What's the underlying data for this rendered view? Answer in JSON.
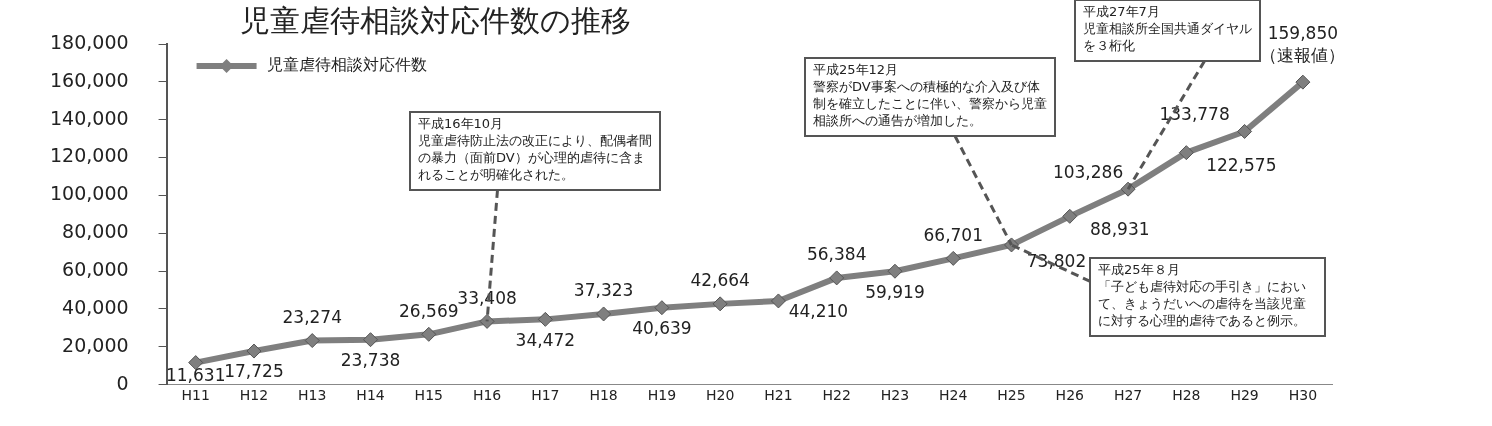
{
  "chart_data": {
    "type": "line",
    "title": "児童虐待相談対応件数の推移",
    "categories": [
      "H11",
      "H12",
      "H13",
      "H14",
      "H15",
      "H16",
      "H17",
      "H18",
      "H19",
      "H20",
      "H21",
      "H22",
      "H23",
      "H24",
      "H25",
      "H26",
      "H27",
      "H28",
      "H29",
      "H30"
    ],
    "series": [
      {
        "name": "児童虐待相談対応件数",
        "color": "#7f7f7f",
        "values": [
          11631,
          17725,
          23274,
          23738,
          26569,
          33408,
          34472,
          37323,
          40639,
          42664,
          44210,
          56384,
          59919,
          66701,
          73802,
          88931,
          103286,
          122575,
          133778,
          159850
        ],
        "value_labels": [
          "11,631",
          "17,725",
          "23,274",
          "23,738",
          "26,569",
          "33,408",
          "34,472",
          "37,323",
          "40,639",
          "42,664",
          "44,210",
          "56,384",
          "59,919",
          "66,701",
          "73,802",
          "88,931",
          "103,286",
          "122,575",
          "133,778",
          "159,850"
        ]
      }
    ],
    "ylim": [
      0,
      180000
    ],
    "yticks": [
      {
        "value": 0,
        "label": "0"
      },
      {
        "value": 20000,
        "label": "20,000"
      },
      {
        "value": 40000,
        "label": "40,000"
      },
      {
        "value": 60000,
        "label": "60,000"
      },
      {
        "value": 80000,
        "label": "80,000"
      },
      {
        "value": 100000,
        "label": "100,000"
      },
      {
        "value": 120000,
        "label": "120,000"
      },
      {
        "value": 140000,
        "label": "140,000"
      },
      {
        "value": 160000,
        "label": "160,000"
      },
      {
        "value": 180000,
        "label": "180,000"
      }
    ],
    "grid": false,
    "legend": "top left",
    "marker": "diamond",
    "line_style": "solid",
    "annotations": [
      {
        "text": "（速報値）",
        "x": "H30",
        "y": 159850
      },
      "平成16年10月",
      {
        "text": "児童虐待防止法の改正により、配偶者間の暴力（面前DV）が心理的虐待に含まれることが明確化された。",
        "x": "H16",
        "y": 33408
      },
      "平成25年12月",
      {
        "text": "警察がDV事案への積極的な介入及び体制を確立したことに伴い、警察から児童相談所への通告が増加した。",
        "x": "H25",
        "y": 73802
      },
      "平成27年7月",
      {
        "text": "児童相談所全国共通ダイヤルを３桁化",
        "x": "H27",
        "y": 103286
      },
      "平成25年８月",
      {
        "text": "「子ども虐待対応の手引き」において、きょうだいへの虐待を当該児童に対する心理的虐待であると例示。",
        "x": "H25",
        "y": 73802
      }
    ]
  }
}
